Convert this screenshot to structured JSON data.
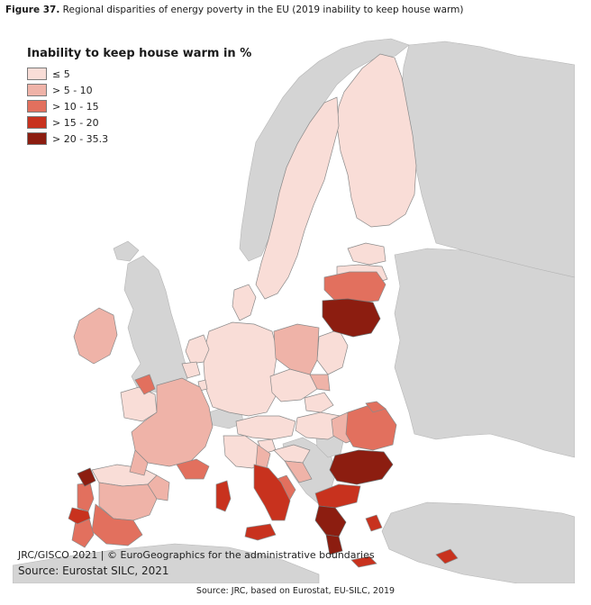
{
  "caption": {
    "figure_label": "Figure 37.",
    "text": " Regional disparities of energy poverty in the EU (2019 inability to keep house warm)"
  },
  "legend": {
    "title": "Inability to keep house warm in %",
    "classes": [
      {
        "label": "≤ 5",
        "color": "#f9ddd7"
      },
      {
        "label": "> 5 - 10",
        "color": "#efb3a8"
      },
      {
        "label": "> 10 - 15",
        "color": "#e2705e"
      },
      {
        "label": "> 15 - 20",
        "color": "#c8321e"
      },
      {
        "label": "> 20 - 35.3",
        "color": "#8c1d10"
      }
    ]
  },
  "map_colors": {
    "sea": "#ffffff",
    "non_eu_land": "#d4d4d4",
    "borders": "#8a8a8a"
  },
  "credit": "JRC/GISCO 2021 | © EuroGeographics for the administrative boundaries",
  "map_source": "Source: Eurostat SILC, 2021",
  "footer_source": "Source: JRC, based on Eurostat, EU-SILC, 2019"
}
